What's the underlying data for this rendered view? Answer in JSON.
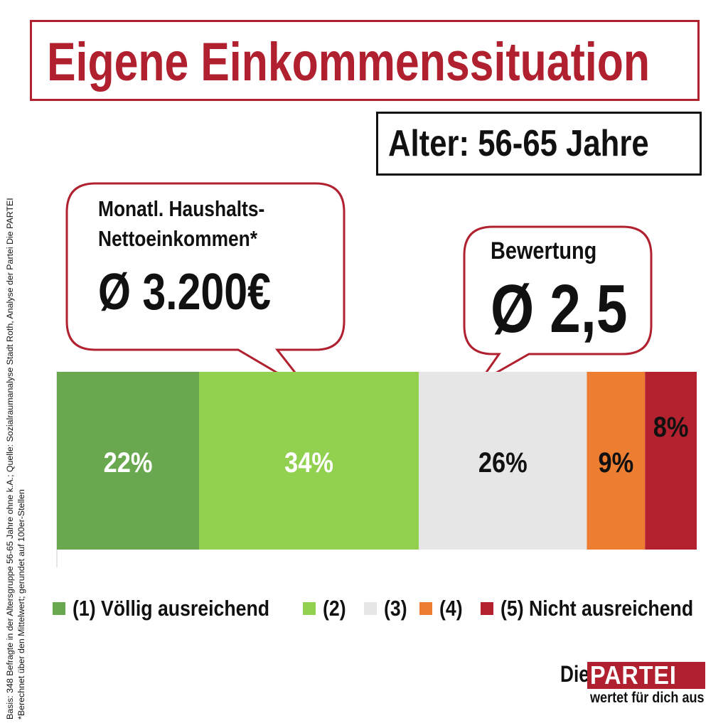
{
  "header": {
    "title": "Eigene Einkommenssituation",
    "age_group": "Alter: 56-65 Jahre"
  },
  "callouts": {
    "income_label_line1": "Monatl. Haushalts-",
    "income_label_line2": "Nettoeinkommen*",
    "income_value": "Ø 3.200€",
    "rating_label": "Bewertung",
    "rating_value": "Ø 2,5"
  },
  "chart_data": {
    "type": "bar",
    "orientation": "horizontal-stacked-100",
    "segments": [
      {
        "name": "(1) Völlig ausreichend",
        "value": 22,
        "label": "22%",
        "color": "#6aa84f",
        "label_color": "#ffffff"
      },
      {
        "name": "(2)",
        "value": 34,
        "label": "34%",
        "color": "#92d050",
        "label_color": "#ffffff"
      },
      {
        "name": "(3)",
        "value": 26,
        "label": "26%",
        "color": "#e7e6e6",
        "label_color": "#111111"
      },
      {
        "name": "(4)",
        "value": 9,
        "label": "9%",
        "color": "#ed7d31",
        "label_color": "#111111"
      },
      {
        "name": "(5) Nicht ausreichend",
        "value": 8,
        "label": "8%",
        "color": "#b4222f",
        "label_color": "#111111"
      }
    ],
    "legend_position": "bottom"
  },
  "footnote": {
    "line1": "Basis: 348 Befragte in der Altersgruppe  56-65 Jahre ohne k.A.; Quelle:  Sozialraumanalyse  Stadt Roth, Analyse der Partei Die PARTEI",
    "line2": "*Berechnet über den Mittelwert; gerundet auf 100er-Stellen"
  },
  "logo": {
    "die": "Die",
    "partei": "PARTEI",
    "tagline": "wertet für dich aus"
  },
  "colors": {
    "brand_red": "#b0202e"
  }
}
